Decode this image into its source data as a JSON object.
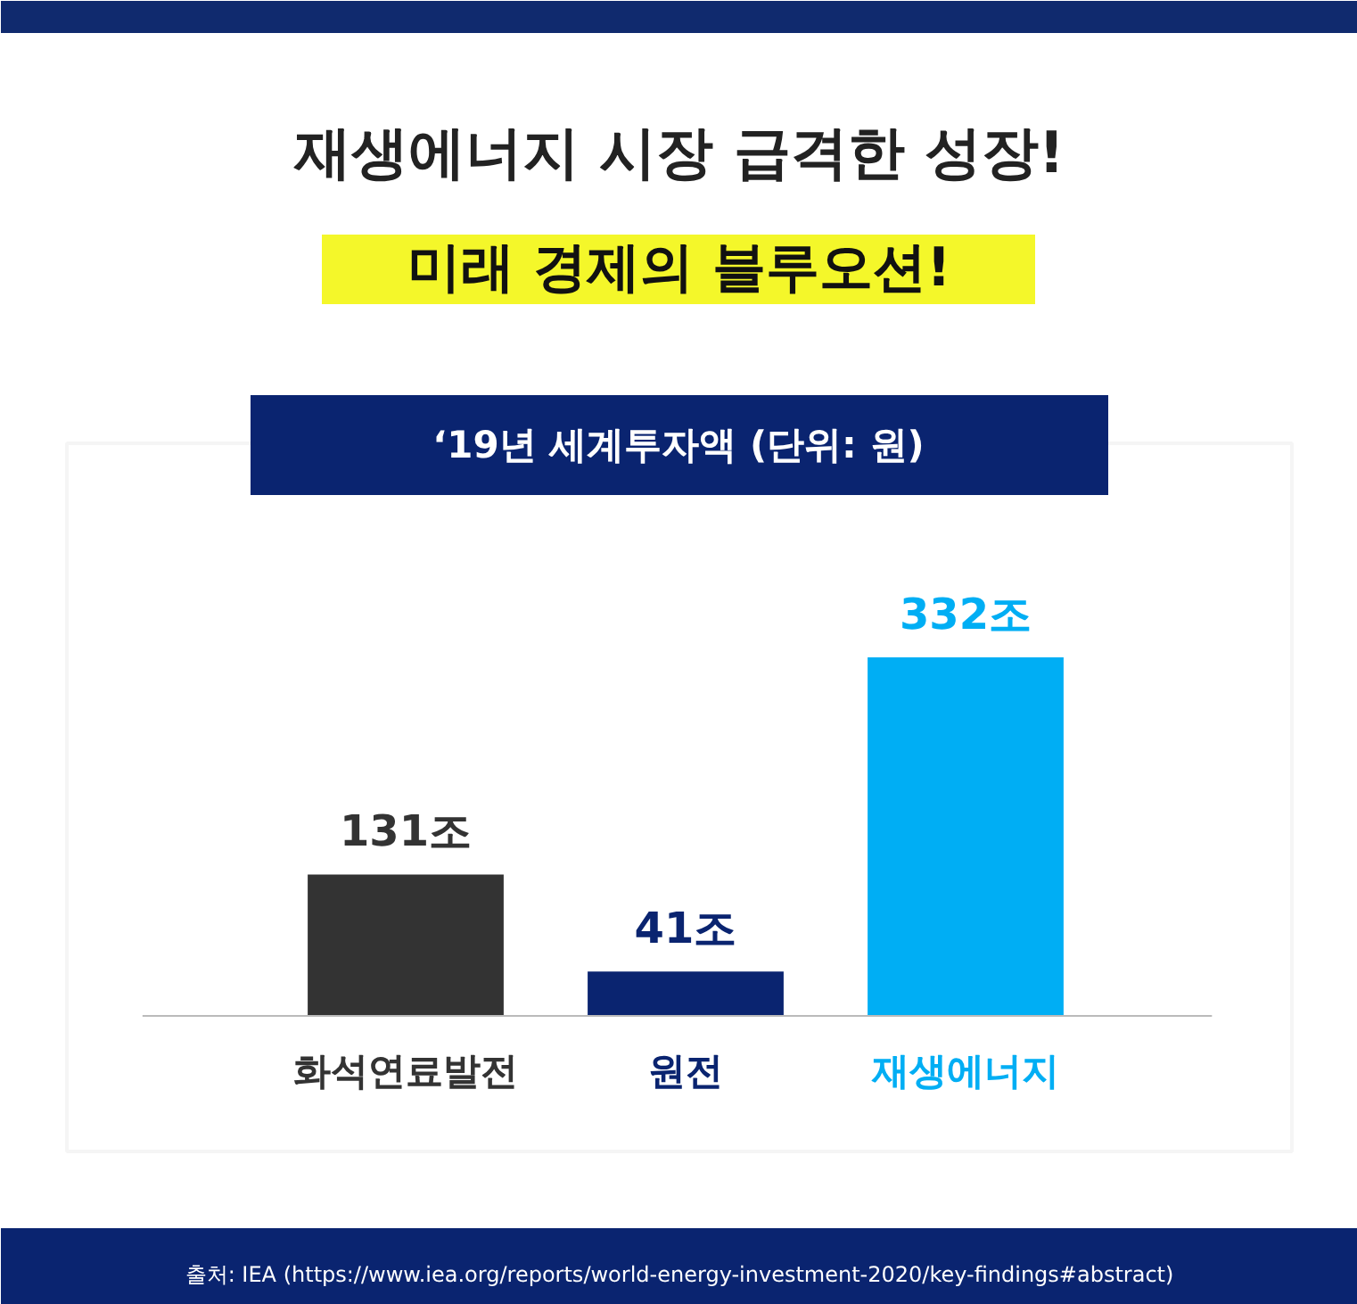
{
  "chart_data": {
    "type": "bar",
    "title": "재생에너지 시장 급격한 성장!",
    "subtitle": "미래 경제의 블루오션!",
    "categories": [
      "화석연료발전",
      "원전",
      "재생에너지"
    ],
    "values": [
      131,
      41,
      332
    ],
    "colors": [
      "#333333",
      "#0a2470",
      "#00aef4"
    ],
    "value_labels": [
      "131조",
      "41조",
      "332조"
    ],
    "annotations": [
      "‘19년 세계투자액 (단위: 원)",
      "출처: IEA (https://www.iea.org/reports/world-energy-investment-2020/key-findings#abstract)"
    ],
    "grid": false
  }
}
